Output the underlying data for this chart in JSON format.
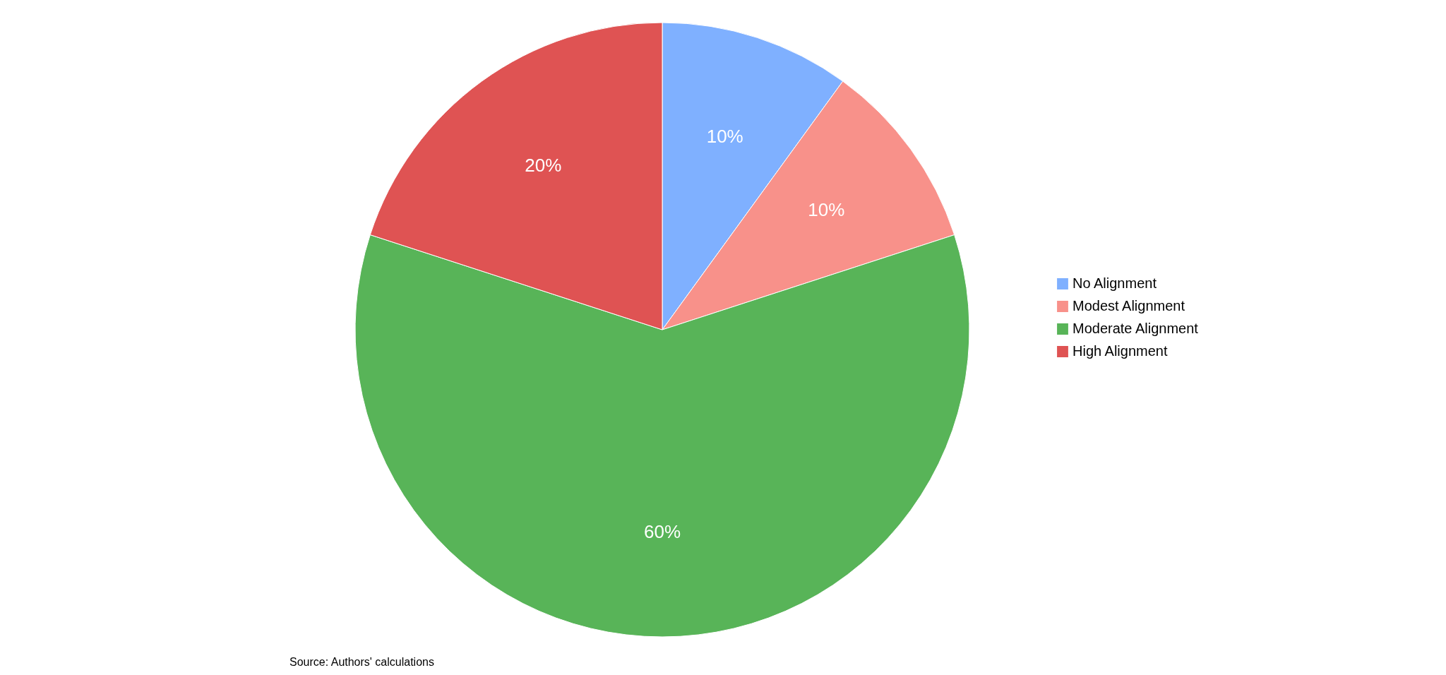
{
  "chart_data": {
    "type": "pie",
    "categories": [
      "No Alignment",
      "Modest Alignment",
      "Moderate Alignment",
      "High Alignment"
    ],
    "values": [
      10,
      10,
      60,
      20
    ],
    "colors": [
      "#7fb0ff",
      "#f8918a",
      "#58b458",
      "#df5353"
    ],
    "value_labels": [
      "10%",
      "10%",
      "60%",
      "20%"
    ],
    "legend": "right",
    "annotations": [
      "Source: Authors' calculations"
    ]
  }
}
